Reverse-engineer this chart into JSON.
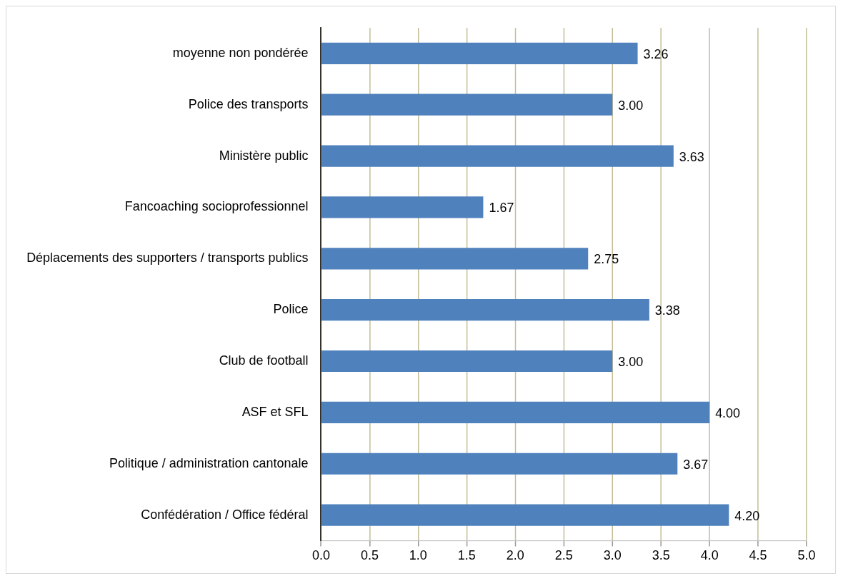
{
  "chart_data": {
    "type": "bar",
    "orientation": "horizontal",
    "categories": [
      "moyenne non pondérée",
      "Police des transports",
      "Ministère public",
      "Fancoaching socioprofessionnel",
      "Déplacements des supporters / transports publics",
      "Police",
      "Club de football",
      "ASF et SFL",
      "Politique / administration cantonale",
      "Confédération / Office fédéral"
    ],
    "values": [
      3.26,
      3.0,
      3.63,
      1.67,
      2.75,
      3.38,
      3.0,
      4.0,
      3.67,
      4.2
    ],
    "value_labels": [
      "3.26",
      "3.00",
      "3.63",
      "1.67",
      "2.75",
      "3.38",
      "3.00",
      "4.00",
      "3.67",
      "4.20"
    ],
    "color": "#4f81bd",
    "xlim": [
      0,
      5
    ],
    "xticks": [
      {
        "value": 0,
        "label": "0.0"
      },
      {
        "value": 0.5,
        "label": "0.5"
      },
      {
        "value": 1,
        "label": "1.0"
      },
      {
        "value": 1.5,
        "label": "1.5"
      },
      {
        "value": 2,
        "label": "2.0"
      },
      {
        "value": 2.5,
        "label": "2.5"
      },
      {
        "value": 3,
        "label": "3.0"
      },
      {
        "value": 3.5,
        "label": "3.5"
      },
      {
        "value": 4,
        "label": "4.0"
      },
      {
        "value": 4.5,
        "label": "4.5"
      },
      {
        "value": 5,
        "label": "5.0"
      }
    ],
    "grid": "x",
    "legend": false
  }
}
